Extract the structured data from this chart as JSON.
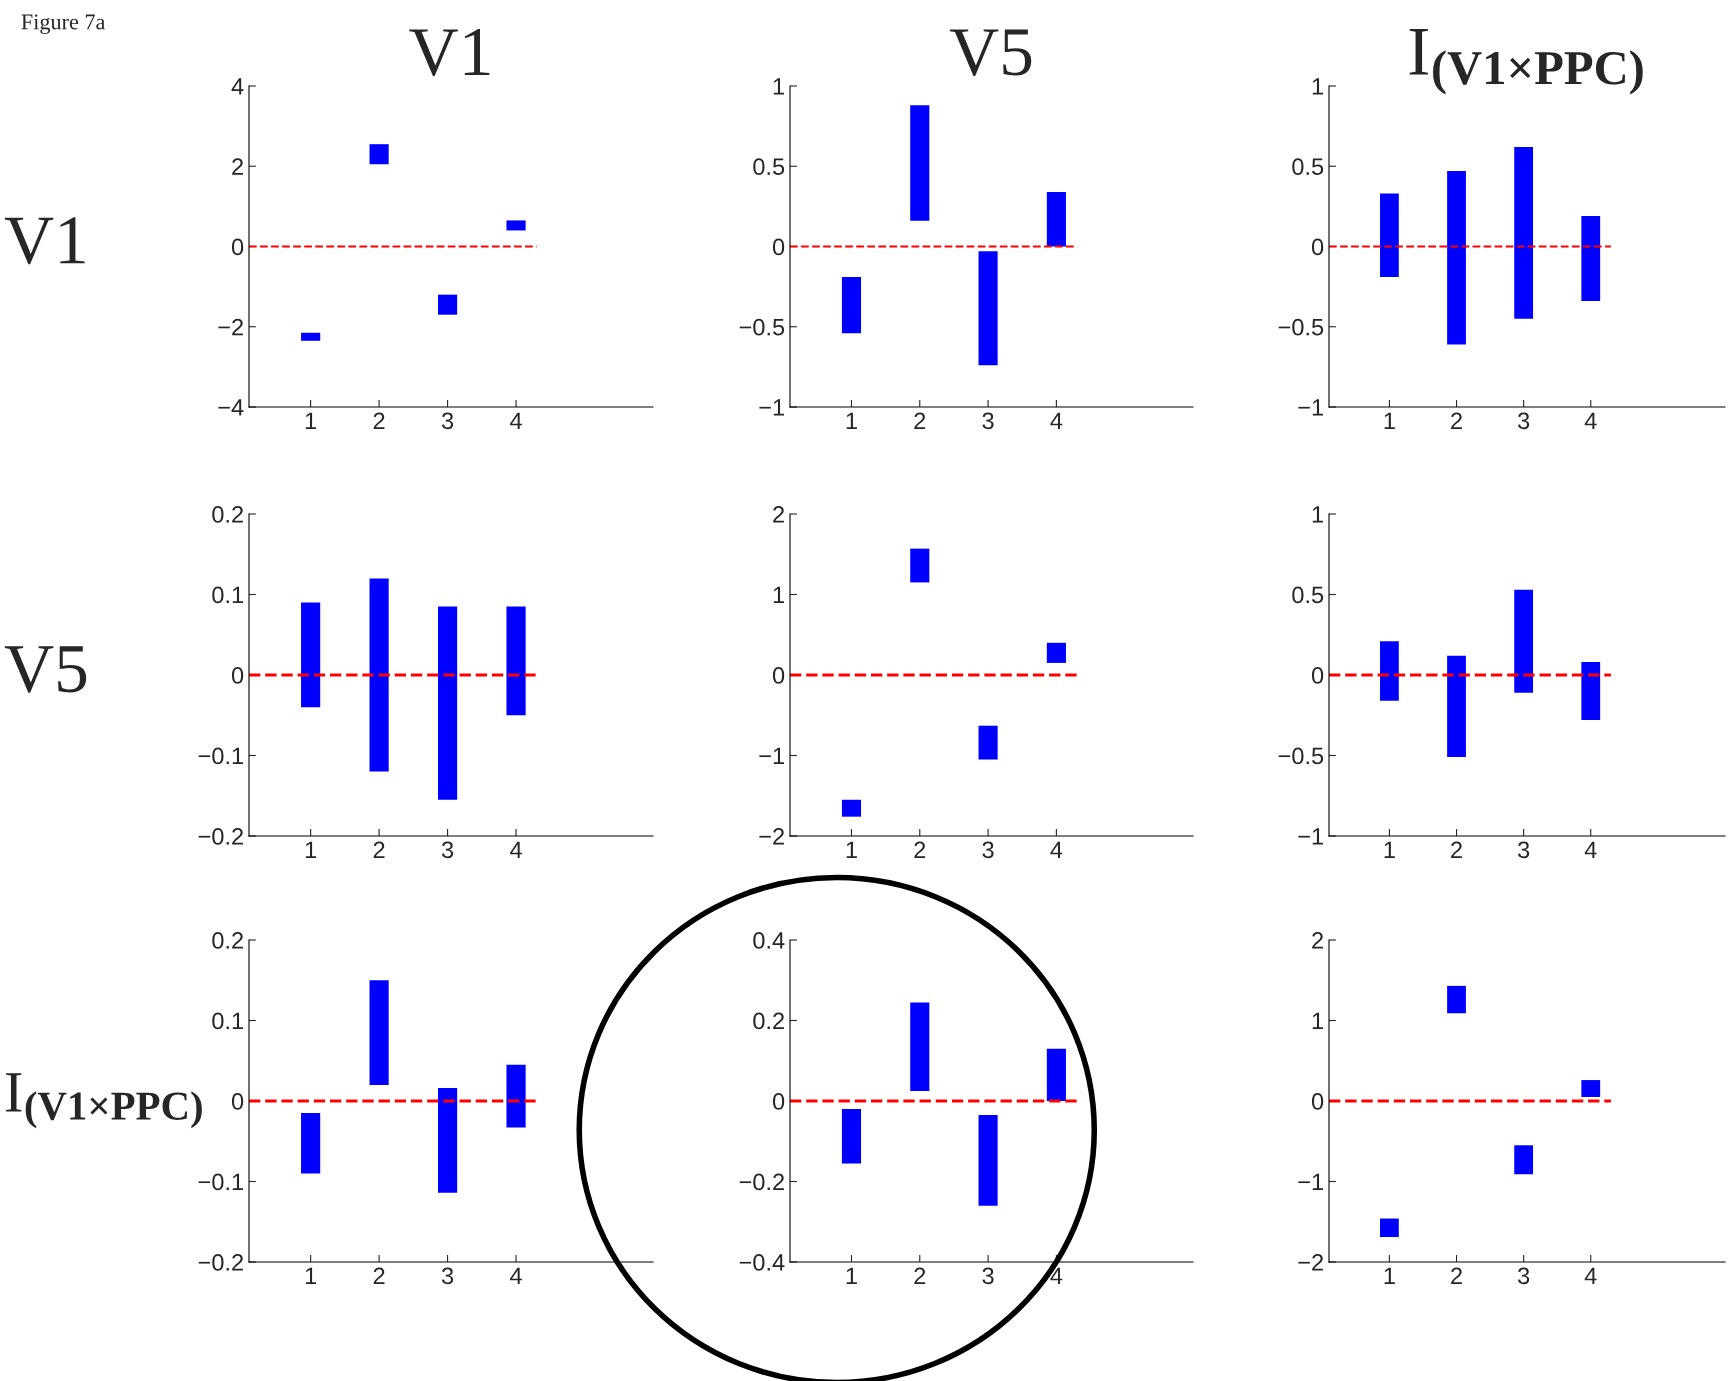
{
  "chart_data": [
    {
      "type": "bar",
      "title": "V1",
      "ylabel": "V1",
      "annotations": [
        "Figure 7a"
      ],
      "categories": [
        "1",
        "2",
        "3",
        "4"
      ],
      "base": [
        -2.35,
        2.05,
        -1.7,
        0.4
      ],
      "values": [
        0.2,
        0.5,
        0.5,
        0.25
      ],
      "color": "#0000ff",
      "ylim": [
        -4,
        4
      ],
      "yticks": [
        -4,
        -2,
        0,
        2,
        4
      ],
      "ref_lines": [
        {
          "axis": "y",
          "value": 0,
          "color": "#ff0000",
          "line_style": "dashed"
        }
      ]
    },
    {
      "type": "bar",
      "title": "V5",
      "categories": [
        "1",
        "2",
        "3",
        "4"
      ],
      "base": [
        -0.54,
        0.16,
        -0.74,
        0.0
      ],
      "values": [
        0.35,
        0.72,
        0.71,
        0.34
      ],
      "color": "#0000ff",
      "ylim": [
        -1,
        1
      ],
      "yticks": [
        -1,
        -0.5,
        0,
        0.5,
        1
      ],
      "ref_lines": [
        {
          "axis": "y",
          "value": 0,
          "color": "#ff0000",
          "line_style": "dashed"
        }
      ]
    },
    {
      "type": "bar",
      "title": "I$_{(V1×PPC)}$",
      "categories": [
        "1",
        "2",
        "3",
        "4"
      ],
      "base": [
        -0.19,
        -0.61,
        -0.45,
        -0.34
      ],
      "values": [
        0.52,
        1.08,
        1.07,
        0.53
      ],
      "color": "#0000ff",
      "ylim": [
        -1,
        1
      ],
      "yticks": [
        -1,
        -0.5,
        0,
        0.5,
        1
      ],
      "ref_lines": [
        {
          "axis": "y",
          "value": 0,
          "color": "#ff0000",
          "line_style": "dashed"
        }
      ]
    },
    {
      "type": "bar",
      "ylabel": "V5",
      "categories": [
        "1",
        "2",
        "3",
        "4"
      ],
      "base": [
        -0.04,
        -0.12,
        -0.155,
        -0.05
      ],
      "values": [
        0.13,
        0.24,
        0.24,
        0.135
      ],
      "color": "#0000ff",
      "ylim": [
        -0.2,
        0.2
      ],
      "yticks": [
        -0.2,
        -0.1,
        0,
        0.1,
        0.2
      ],
      "ref_lines": [
        {
          "axis": "y",
          "value": 0,
          "color": "#ff0000",
          "line_style": "dashed"
        }
      ]
    },
    {
      "type": "bar",
      "categories": [
        "1",
        "2",
        "3",
        "4"
      ],
      "base": [
        -1.76,
        1.15,
        -1.05,
        0.15
      ],
      "values": [
        0.21,
        0.42,
        0.42,
        0.25
      ],
      "color": "#0000ff",
      "ylim": [
        -2,
        2
      ],
      "yticks": [
        -2,
        -1,
        0,
        1,
        2
      ],
      "ref_lines": [
        {
          "axis": "y",
          "value": 0,
          "color": "#ff0000",
          "line_style": "dashed"
        }
      ]
    },
    {
      "type": "bar",
      "categories": [
        "1",
        "2",
        "3",
        "4"
      ],
      "base": [
        -0.16,
        -0.51,
        -0.11,
        -0.28
      ],
      "values": [
        0.37,
        0.63,
        0.64,
        0.36
      ],
      "color": "#0000ff",
      "ylim": [
        -1,
        1
      ],
      "yticks": [
        -1,
        -0.5,
        0,
        0.5,
        1
      ],
      "ref_lines": [
        {
          "axis": "y",
          "value": 0,
          "color": "#ff0000",
          "line_style": "dashed"
        }
      ]
    },
    {
      "type": "bar",
      "ylabel": "I$_{(V1×PPC)}$",
      "categories": [
        "1",
        "2",
        "3",
        "4"
      ],
      "base": [
        -0.09,
        0.02,
        -0.114,
        -0.033
      ],
      "values": [
        0.075,
        0.13,
        0.13,
        0.078
      ],
      "color": "#0000ff",
      "ylim": [
        -0.2,
        0.2
      ],
      "yticks": [
        -0.2,
        -0.1,
        0,
        0.1,
        0.2
      ],
      "ref_lines": [
        {
          "axis": "y",
          "value": 0,
          "color": "#ff0000",
          "line_style": "dashed"
        }
      ]
    },
    {
      "type": "bar",
      "categories": [
        "1",
        "2",
        "3",
        "4"
      ],
      "base": [
        -0.155,
        0.025,
        -0.26,
        0.0
      ],
      "values": [
        0.135,
        0.22,
        0.225,
        0.13
      ],
      "color": "#0000ff",
      "ylim": [
        -0.4,
        0.4
      ],
      "yticks": [
        -0.4,
        -0.2,
        0,
        0.2,
        0.4
      ],
      "ref_lines": [
        {
          "axis": "y",
          "value": 0,
          "color": "#ff0000",
          "line_style": "dashed"
        }
      ]
    },
    {
      "type": "bar",
      "categories": [
        "1",
        "2",
        "3",
        "4"
      ],
      "base": [
        -1.69,
        1.09,
        -0.91,
        0.05
      ],
      "values": [
        0.23,
        0.34,
        0.36,
        0.21
      ],
      "color": "#0000ff",
      "ylim": [
        -2,
        2
      ],
      "yticks": [
        -2,
        -1,
        0,
        1,
        2
      ],
      "ref_lines": [
        {
          "axis": "y",
          "value": 0,
          "color": "#ff0000",
          "line_style": "dashed"
        }
      ]
    }
  ]
}
